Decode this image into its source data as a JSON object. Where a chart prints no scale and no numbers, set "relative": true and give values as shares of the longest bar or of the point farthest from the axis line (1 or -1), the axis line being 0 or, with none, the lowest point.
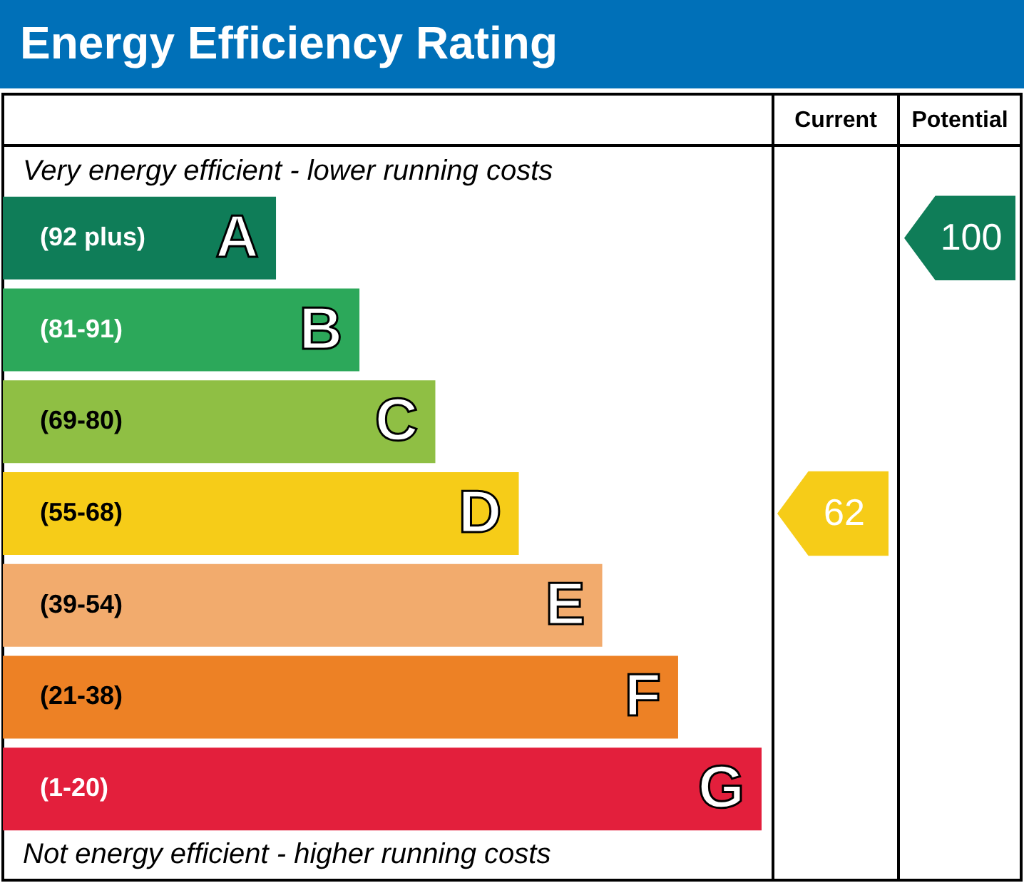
{
  "chart_data": {
    "type": "bar",
    "orientation": "horizontal",
    "relative": true,
    "title": "Energy Efficiency Rating",
    "categories": [
      "A",
      "B",
      "C",
      "D",
      "E",
      "F",
      "G"
    ],
    "values": [
      0.36,
      0.47,
      0.57,
      0.68,
      0.79,
      0.89,
      1
    ],
    "colors": [
      "#0f7d58",
      "#2ca85a",
      "#8fbf44",
      "#f6cc18",
      "#f2ab6d",
      "#ed8125",
      "#e31f3c"
    ],
    "annotations": [
      "Very energy efficient - lower running costs",
      "Not energy efficient - higher running costs",
      "Current",
      "Potential",
      "62",
      "100",
      "(92 plus)",
      "(81-91)",
      "(69-80)",
      "(55-68)",
      "(39-54)",
      "(21-38)",
      "(1-20)"
    ]
  }
}
